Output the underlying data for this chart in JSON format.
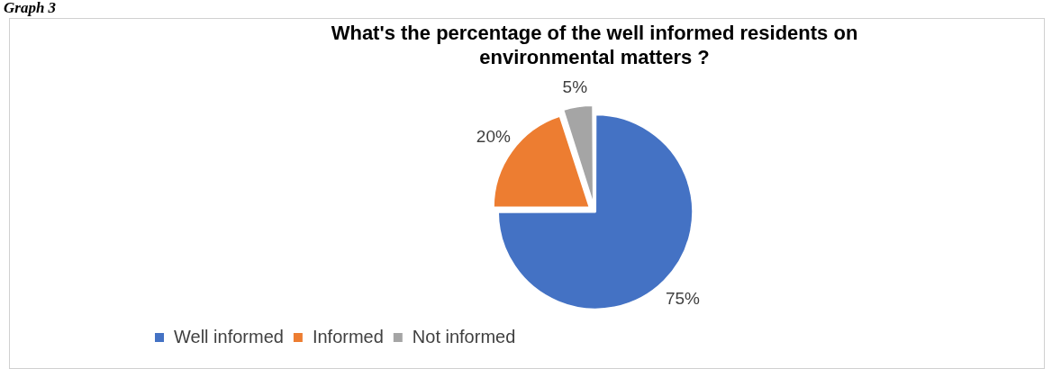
{
  "chart_data": {
    "type": "pie",
    "title": "What's the percentage of the well informed residents on environmental matters ?",
    "categories": [
      "Well informed",
      "Informed",
      "Not informed"
    ],
    "values": [
      75,
      20,
      5
    ],
    "colors": [
      "#4472c4",
      "#ed7d31",
      "#a5a5a5"
    ],
    "value_labels": [
      "75%",
      "20%",
      "5%"
    ],
    "legend": "bottom left",
    "annotations": [
      "Graph 3"
    ]
  }
}
